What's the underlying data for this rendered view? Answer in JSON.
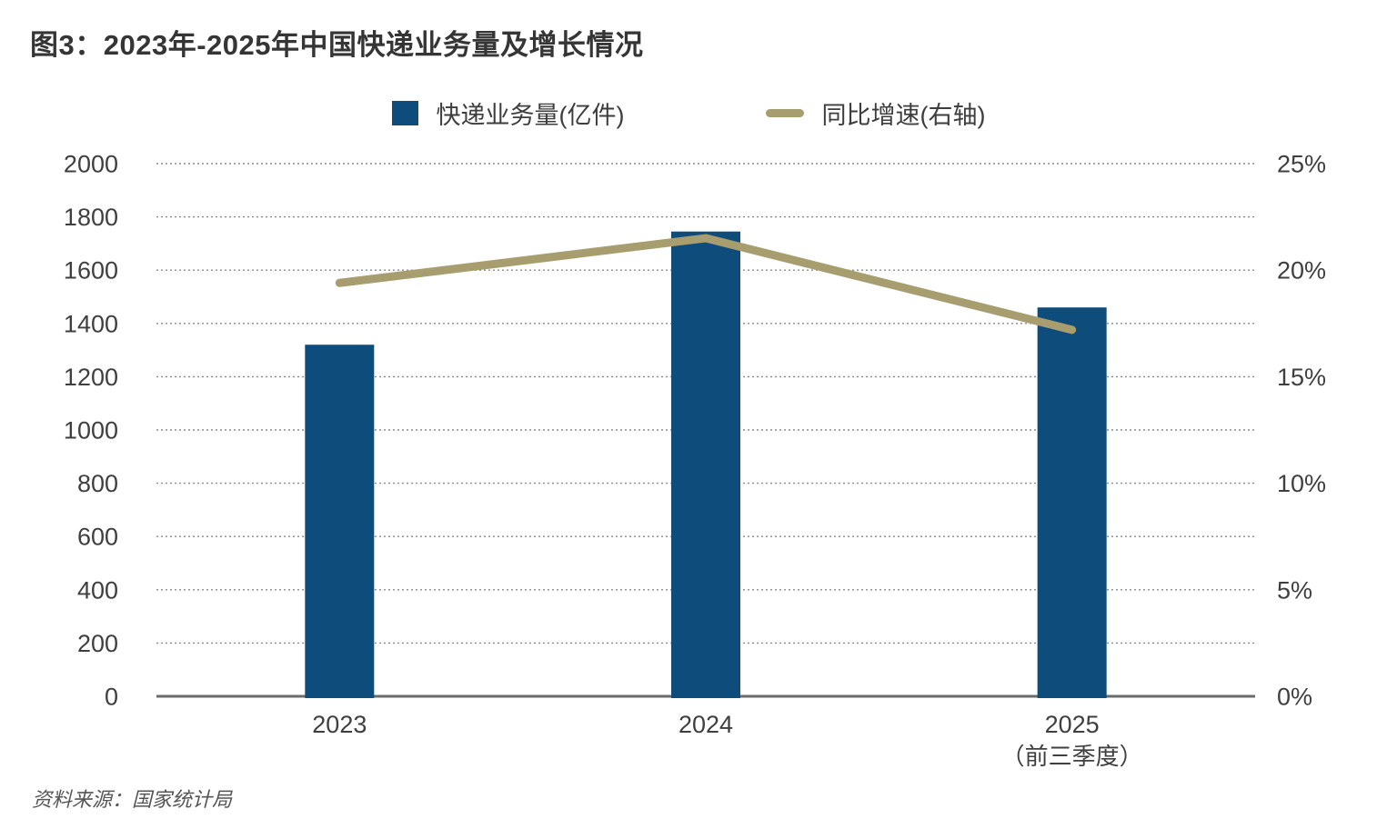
{
  "title": "图3：2023年-2025年中国快递业务量及增长情况",
  "legend": [
    {
      "label": "快递业务量(亿件)",
      "type": "bar",
      "color": "#0e4c7b"
    },
    {
      "label": "同比增速(右轴)",
      "type": "line",
      "color": "#a79d6e"
    }
  ],
  "source": "资料来源：国家统计局",
  "colors": {
    "bar_blue": "#0e4c7b",
    "line_gold": "#a79d6e",
    "gridline": "#8a8a8a",
    "axis_line": "#6b6b6b",
    "tick_text": "#3f3f3f"
  },
  "chart_data": {
    "type": "bar",
    "subtype": "combo-bar-line-dual-axis",
    "title": "图3：2023年-2025年中国快递业务量及增长情况",
    "categories": [
      "2023",
      "2024",
      "2025"
    ],
    "category_sublabels": [
      "",
      "",
      "（前三季度）"
    ],
    "series": [
      {
        "name": "快递业务量(亿件)",
        "type": "bar",
        "axis": "left",
        "values": [
          1320,
          1745,
          1460
        ],
        "color": "#0e4c7b"
      },
      {
        "name": "同比增速(右轴)",
        "type": "line",
        "axis": "right",
        "values": [
          19.4,
          21.5,
          17.2
        ],
        "color": "#a79d6e"
      }
    ],
    "left_axis": {
      "min": 0,
      "max": 2000,
      "step": 200,
      "tick_labels": [
        "0",
        "200",
        "400",
        "600",
        "800",
        "1000",
        "1200",
        "1400",
        "1600",
        "1800",
        "2000"
      ]
    },
    "right_axis": {
      "min": 0,
      "max": 25,
      "step": 5,
      "tick_labels": [
        "0%",
        "5%",
        "10%",
        "15%",
        "20%",
        "25%"
      ]
    },
    "grid": "horizontal dotted",
    "legend_position": "top-center",
    "source": "资料来源：国家统计局"
  }
}
